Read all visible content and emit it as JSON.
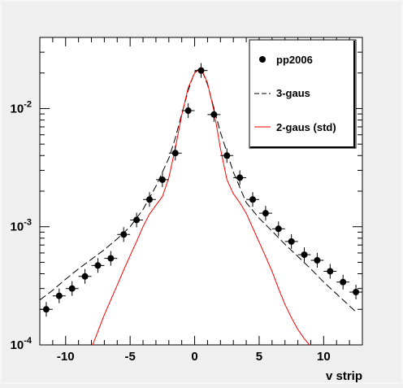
{
  "chart_data": {
    "type": "scatter",
    "xlabel": "v strip",
    "ylabel": "",
    "xlim": [
      -12,
      13
    ],
    "ylim": [
      0.0001,
      0.04
    ],
    "y_scale": "log",
    "x_ticks": [
      -10,
      -5,
      0,
      5,
      10
    ],
    "x_tick_labels": [
      "-10",
      "-5",
      "0",
      "5",
      "10"
    ],
    "y_ticks": [
      0.0001,
      0.001,
      0.01
    ],
    "y_tick_labels": [
      {
        "base": "10",
        "exp": "-4"
      },
      {
        "base": "10",
        "exp": "-3"
      },
      {
        "base": "10",
        "exp": "-2"
      }
    ],
    "legend_position": "top-right",
    "series": [
      {
        "name": "pp2006",
        "kind": "points",
        "color": "#000000",
        "x": [
          -11.5,
          -10.5,
          -9.5,
          -8.5,
          -7.5,
          -6.5,
          -5.5,
          -4.5,
          -3.5,
          -2.5,
          -1.5,
          -0.5,
          0.5,
          1.5,
          2.5,
          3.5,
          4.5,
          5.5,
          6.5,
          7.5,
          8.5,
          9.5,
          10.5,
          11.5,
          12.5
        ],
        "y": [
          0.0002,
          0.00026,
          0.0003,
          0.00038,
          0.00047,
          0.00054,
          0.00086,
          0.00114,
          0.0017,
          0.0025,
          0.0042,
          0.0096,
          0.021,
          0.0089,
          0.004,
          0.0026,
          0.0017,
          0.0013,
          0.00096,
          0.00075,
          0.00058,
          0.00052,
          0.00042,
          0.00034,
          0.00028
        ]
      },
      {
        "name": "3-gaus",
        "kind": "line",
        "dash": "long-dash",
        "color": "#000000",
        "x": [
          -12,
          -11,
          -10,
          -9,
          -8,
          -7,
          -6,
          -5,
          -4,
          -3,
          -2,
          -1.5,
          -1,
          -0.5,
          0,
          0.5,
          1,
          1.5,
          2,
          3,
          4,
          5,
          6,
          7,
          8,
          9,
          10,
          11,
          12.5
        ],
        "y": [
          0.00024,
          0.00029,
          0.00036,
          0.00044,
          0.00053,
          0.00064,
          0.00079,
          0.001,
          0.0014,
          0.0022,
          0.0038,
          0.0056,
          0.009,
          0.0142,
          0.0205,
          0.022,
          0.016,
          0.01,
          0.0063,
          0.0029,
          0.0016,
          0.00118,
          0.00092,
          0.00071,
          0.00056,
          0.00044,
          0.00034,
          0.00027,
          0.00019
        ]
      },
      {
        "name": "2-gaus (std)",
        "kind": "line",
        "color": "#ff0000",
        "x": [
          -7.9,
          -7.5,
          -7,
          -6.5,
          -6,
          -5.5,
          -5,
          -4.5,
          -4,
          -3.5,
          -3,
          -2.5,
          -2,
          -1.5,
          -1,
          -0.5,
          0,
          0.5,
          1,
          1.5,
          2,
          2.5,
          3,
          3.5,
          4,
          4.5,
          5,
          5.5,
          6,
          6.5,
          7,
          7.5,
          8,
          8.5,
          8.9
        ],
        "y": [
          0.0001,
          0.00013,
          0.00018,
          0.00024,
          0.00032,
          0.00043,
          0.00057,
          0.00075,
          0.001,
          0.00128,
          0.00152,
          0.0018,
          0.0026,
          0.0046,
          0.0088,
          0.015,
          0.02,
          0.022,
          0.0165,
          0.0095,
          0.0046,
          0.0025,
          0.0019,
          0.0016,
          0.0013,
          0.00098,
          0.00074,
          0.00056,
          0.00042,
          0.0003,
          0.00022,
          0.00017,
          0.000135,
          0.000113,
          0.0001
        ]
      }
    ]
  }
}
